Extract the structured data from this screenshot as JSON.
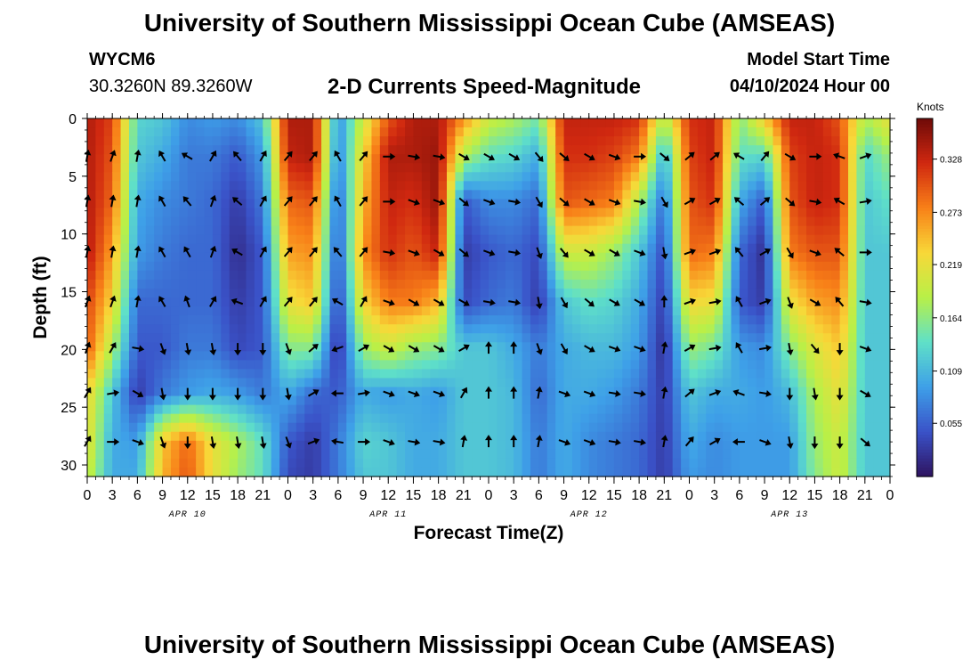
{
  "header": {
    "title": "University of Southern Mississippi Ocean Cube (AMSEAS)",
    "station_id": "WYCM6",
    "coords": "30.3260N  89.3260W",
    "subtitle": "2-D Currents Speed-Magnitude",
    "model_start_label": "Model Start Time",
    "model_start_value": "04/10/2024 Hour 00"
  },
  "footer": {
    "title": "University of Southern Mississippi Ocean Cube (AMSEAS)"
  },
  "chart_data": {
    "type": "heatmap",
    "title": "2-D Currents Speed-Magnitude",
    "xlabel": "Forecast Time(Z)",
    "ylabel": "Depth (ft)",
    "x_range_hours": [
      0,
      96
    ],
    "y_range_ft": [
      0,
      31
    ],
    "y_ticks": [
      "0",
      "5",
      "10",
      "15",
      "20",
      "25",
      "30"
    ],
    "x_ticks": [
      "0",
      "3",
      "6",
      "9",
      "12",
      "15",
      "18",
      "21",
      "0",
      "3",
      "6",
      "9",
      "12",
      "15",
      "18",
      "21",
      "0",
      "3",
      "6",
      "9",
      "12",
      "15",
      "18",
      "21",
      "0",
      "3",
      "6",
      "9",
      "12",
      "15",
      "18",
      "21",
      "0"
    ],
    "day_labels": [
      "APR 10",
      "APR 11",
      "APR 12",
      "APR 13"
    ],
    "colorbar": {
      "unit": "Knots",
      "range": [
        0.0,
        0.37
      ],
      "ticks": [
        "0.328",
        "0.273",
        "0.219",
        "0.164",
        "0.109",
        "0.055"
      ],
      "colors": [
        "#2e1360",
        "#3a52c8",
        "#3ea0e8",
        "#5fe0c8",
        "#b8f048",
        "#f8d838",
        "#f88018",
        "#d02810",
        "#6e0a08"
      ]
    },
    "columns_hours": [
      0,
      3,
      6,
      9,
      12,
      15,
      18,
      21,
      24,
      27,
      30,
      33,
      36,
      39,
      42,
      45,
      48,
      51,
      54,
      57,
      60,
      63,
      66,
      69,
      72,
      75,
      78,
      81,
      84,
      87,
      90,
      93,
      96
    ],
    "depth_levels_ft": [
      0,
      3.3,
      7.2,
      11.6,
      15.9,
      19.9,
      23.8,
      28.0,
      31.0
    ],
    "speed_knots": [
      [
        0.34,
        0.34,
        0.34,
        0.34,
        0.31,
        0.3,
        0.23,
        0.22,
        0.2
      ],
      [
        0.31,
        0.3,
        0.29,
        0.26,
        0.23,
        0.18,
        0.12,
        0.1,
        0.1
      ],
      [
        0.13,
        0.12,
        0.1,
        0.09,
        0.06,
        0.05,
        0.03,
        0.09,
        0.1
      ],
      [
        0.12,
        0.1,
        0.08,
        0.07,
        0.06,
        0.05,
        0.07,
        0.24,
        0.25
      ],
      [
        0.08,
        0.07,
        0.07,
        0.06,
        0.06,
        0.07,
        0.09,
        0.29,
        0.3
      ],
      [
        0.09,
        0.07,
        0.06,
        0.06,
        0.06,
        0.07,
        0.1,
        0.22,
        0.22
      ],
      [
        0.08,
        0.05,
        0.03,
        0.02,
        0.03,
        0.04,
        0.09,
        0.18,
        0.17
      ],
      [
        0.12,
        0.09,
        0.07,
        0.05,
        0.05,
        0.05,
        0.07,
        0.14,
        0.14
      ],
      [
        0.34,
        0.33,
        0.29,
        0.26,
        0.22,
        0.16,
        0.1,
        0.05,
        0.04
      ],
      [
        0.34,
        0.34,
        0.3,
        0.27,
        0.24,
        0.16,
        0.06,
        0.03,
        0.03
      ],
      [
        0.08,
        0.07,
        0.05,
        0.04,
        0.03,
        0.02,
        0.05,
        0.07,
        0.07
      ],
      [
        0.2,
        0.23,
        0.25,
        0.27,
        0.23,
        0.17,
        0.1,
        0.13,
        0.12
      ],
      [
        0.3,
        0.34,
        0.33,
        0.32,
        0.28,
        0.2,
        0.09,
        0.12,
        0.12
      ],
      [
        0.34,
        0.34,
        0.32,
        0.3,
        0.28,
        0.17,
        0.1,
        0.1,
        0.1
      ],
      [
        0.34,
        0.35,
        0.35,
        0.33,
        0.25,
        0.16,
        0.09,
        0.1,
        0.1
      ],
      [
        0.27,
        0.18,
        0.05,
        0.03,
        0.04,
        0.12,
        0.12,
        0.12,
        0.12
      ],
      [
        0.2,
        0.14,
        0.08,
        0.05,
        0.06,
        0.12,
        0.12,
        0.12,
        0.12
      ],
      [
        0.18,
        0.13,
        0.08,
        0.06,
        0.07,
        0.1,
        0.11,
        0.11,
        0.11
      ],
      [
        0.15,
        0.1,
        0.06,
        0.04,
        0.03,
        0.07,
        0.06,
        0.07,
        0.07
      ],
      [
        0.33,
        0.32,
        0.3,
        0.2,
        0.12,
        0.1,
        0.1,
        0.1,
        0.1
      ],
      [
        0.33,
        0.32,
        0.29,
        0.2,
        0.14,
        0.11,
        0.1,
        0.08,
        0.08
      ],
      [
        0.33,
        0.31,
        0.28,
        0.17,
        0.13,
        0.11,
        0.09,
        0.07,
        0.07
      ],
      [
        0.32,
        0.28,
        0.18,
        0.12,
        0.1,
        0.09,
        0.07,
        0.06,
        0.06
      ],
      [
        0.18,
        0.1,
        0.06,
        0.04,
        0.03,
        0.02,
        0.03,
        0.03,
        0.03
      ],
      [
        0.32,
        0.31,
        0.3,
        0.29,
        0.23,
        0.17,
        0.12,
        0.1,
        0.09
      ],
      [
        0.33,
        0.33,
        0.32,
        0.28,
        0.22,
        0.15,
        0.1,
        0.08,
        0.08
      ],
      [
        0.16,
        0.14,
        0.1,
        0.06,
        0.05,
        0.09,
        0.1,
        0.09,
        0.09
      ],
      [
        0.24,
        0.13,
        0.05,
        0.02,
        0.03,
        0.08,
        0.09,
        0.09,
        0.09
      ],
      [
        0.33,
        0.31,
        0.3,
        0.28,
        0.22,
        0.16,
        0.11,
        0.09,
        0.09
      ],
      [
        0.33,
        0.33,
        0.33,
        0.3,
        0.26,
        0.21,
        0.18,
        0.17,
        0.16
      ],
      [
        0.3,
        0.32,
        0.32,
        0.3,
        0.27,
        0.24,
        0.22,
        0.2,
        0.2
      ],
      [
        0.18,
        0.13,
        0.12,
        0.12,
        0.12,
        0.12,
        0.12,
        0.12,
        0.12
      ],
      [
        0.22,
        0.17,
        0.14,
        0.12,
        0.12,
        0.12,
        0.12,
        0.12,
        0.12
      ]
    ],
    "arrow_depths_ft": [
      3.3,
      7.2,
      11.6,
      15.9,
      19.9,
      23.8,
      28.0
    ],
    "arrow_columns_hours": [
      0,
      3,
      6,
      9,
      12,
      15,
      18,
      21,
      24,
      27,
      30,
      33,
      36,
      39,
      42,
      45,
      48,
      51,
      54,
      57,
      60,
      63,
      66,
      69,
      72,
      75,
      78,
      81,
      84,
      87,
      90,
      93
    ],
    "arrow_directions_deg": [
      [
        10,
        10,
        10,
        20,
        20,
        30,
        30
      ],
      [
        20,
        10,
        10,
        20,
        30,
        80,
        90
      ],
      [
        10,
        10,
        10,
        10,
        100,
        120,
        110
      ],
      [
        330,
        330,
        330,
        330,
        160,
        170,
        160
      ],
      [
        300,
        320,
        330,
        340,
        170,
        180,
        180
      ],
      [
        30,
        20,
        20,
        30,
        170,
        180,
        170
      ],
      [
        320,
        310,
        300,
        290,
        180,
        180,
        170
      ],
      [
        30,
        30,
        30,
        30,
        180,
        180,
        170
      ],
      [
        40,
        40,
        40,
        40,
        160,
        170,
        160
      ],
      [
        40,
        40,
        40,
        40,
        50,
        60,
        70
      ],
      [
        330,
        330,
        320,
        300,
        250,
        270,
        280
      ],
      [
        40,
        40,
        40,
        30,
        60,
        80,
        90
      ],
      [
        90,
        90,
        100,
        110,
        120,
        110,
        110
      ],
      [
        100,
        110,
        110,
        120,
        120,
        110,
        100
      ],
      [
        100,
        110,
        120,
        120,
        120,
        110,
        100
      ],
      [
        120,
        130,
        130,
        120,
        60,
        30,
        10
      ],
      [
        120,
        110,
        110,
        100,
        0,
        0,
        0
      ],
      [
        120,
        100,
        100,
        100,
        0,
        0,
        0
      ],
      [
        140,
        150,
        160,
        170,
        160,
        10,
        10
      ],
      [
        130,
        130,
        140,
        150,
        150,
        110,
        110
      ],
      [
        120,
        120,
        120,
        130,
        120,
        110,
        110
      ],
      [
        110,
        110,
        120,
        120,
        110,
        100,
        100
      ],
      [
        90,
        100,
        110,
        120,
        110,
        100,
        100
      ],
      [
        130,
        150,
        170,
        0,
        10,
        10,
        10
      ],
      [
        50,
        60,
        70,
        70,
        60,
        50,
        40
      ],
      [
        50,
        60,
        70,
        80,
        80,
        70,
        60
      ],
      [
        300,
        310,
        320,
        330,
        330,
        290,
        270
      ],
      [
        40,
        50,
        60,
        70,
        80,
        100,
        110
      ],
      [
        120,
        130,
        150,
        160,
        170,
        180,
        170
      ],
      [
        90,
        100,
        110,
        120,
        140,
        170,
        180
      ],
      [
        290,
        300,
        310,
        320,
        180,
        180,
        180
      ],
      [
        70,
        80,
        90,
        100,
        110,
        120,
        130
      ]
    ]
  }
}
